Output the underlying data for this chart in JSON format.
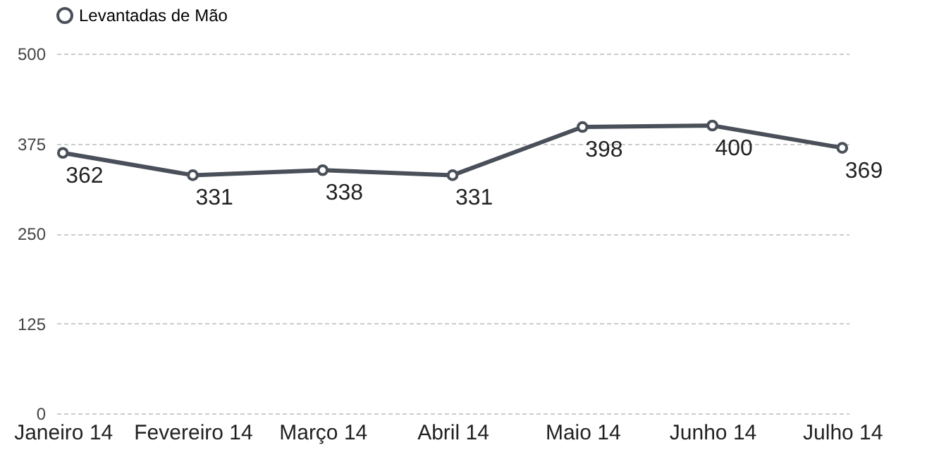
{
  "chart_data": {
    "type": "line",
    "categories": [
      "Janeiro 14",
      "Fevereiro 14",
      "Março 14",
      "Abril 14",
      "Maio 14",
      "Junho 14",
      "Julho 14"
    ],
    "series": [
      {
        "name": "Levantadas de Mão",
        "color": "#4a5059",
        "values": [
          362,
          331,
          338,
          331,
          398,
          400,
          369
        ]
      }
    ],
    "ylim": [
      0,
      500
    ],
    "yticks": [
      0,
      125,
      250,
      375,
      500
    ],
    "grid": "y",
    "legend": "top",
    "marker": "circle",
    "line_style": "solid",
    "data_labels": true
  }
}
